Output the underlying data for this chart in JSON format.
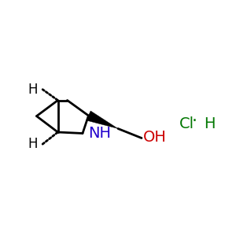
{
  "background_color": "#ffffff",
  "N_label": {
    "label": "NH",
    "color": "#2200CC",
    "fontsize": 14
  },
  "O_label": {
    "label": "OH",
    "color": "#CC0000",
    "fontsize": 14
  },
  "H_label": {
    "label": "H",
    "color": "#000000",
    "fontsize": 12
  },
  "salt_color": "#007700",
  "salt_fontsize": 14,
  "bond_color": "#000000",
  "bond_lw": 2.0
}
